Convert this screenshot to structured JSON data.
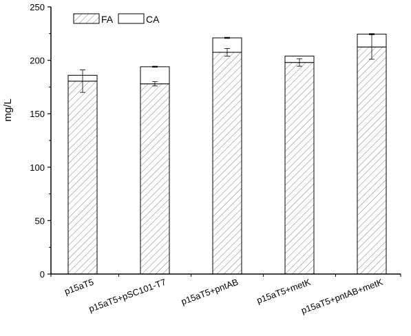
{
  "chart_data": {
    "type": "bar",
    "stacked": true,
    "title": "",
    "xlabel": "",
    "ylabel": "mg/L",
    "ylim": [
      0,
      250
    ],
    "yticks": [
      0,
      50,
      100,
      150,
      200,
      250
    ],
    "grid": false,
    "legend_position": "top-left",
    "categories": [
      "p15aT5",
      "p15aT5+pSC101-T7",
      "p15aT5+pntAB",
      "p15aT5+metK",
      "p15aT5+pntAB+metK"
    ],
    "series": [
      {
        "name": "FA",
        "pattern": "diagonal-hatch",
        "values": [
          180.5,
          178,
          207.5,
          198,
          212.5
        ],
        "error": [
          10.5,
          2,
          3.5,
          3.5,
          11.5
        ]
      },
      {
        "name": "CA",
        "pattern": "none",
        "values": [
          5.5,
          16,
          13.5,
          6,
          12
        ],
        "error": [
          0,
          0.5,
          0.5,
          0,
          0.5
        ]
      }
    ]
  },
  "colors": {
    "axis": "#000000",
    "bar_fill": "#ffffff",
    "hatch": "#7f7f7f"
  }
}
